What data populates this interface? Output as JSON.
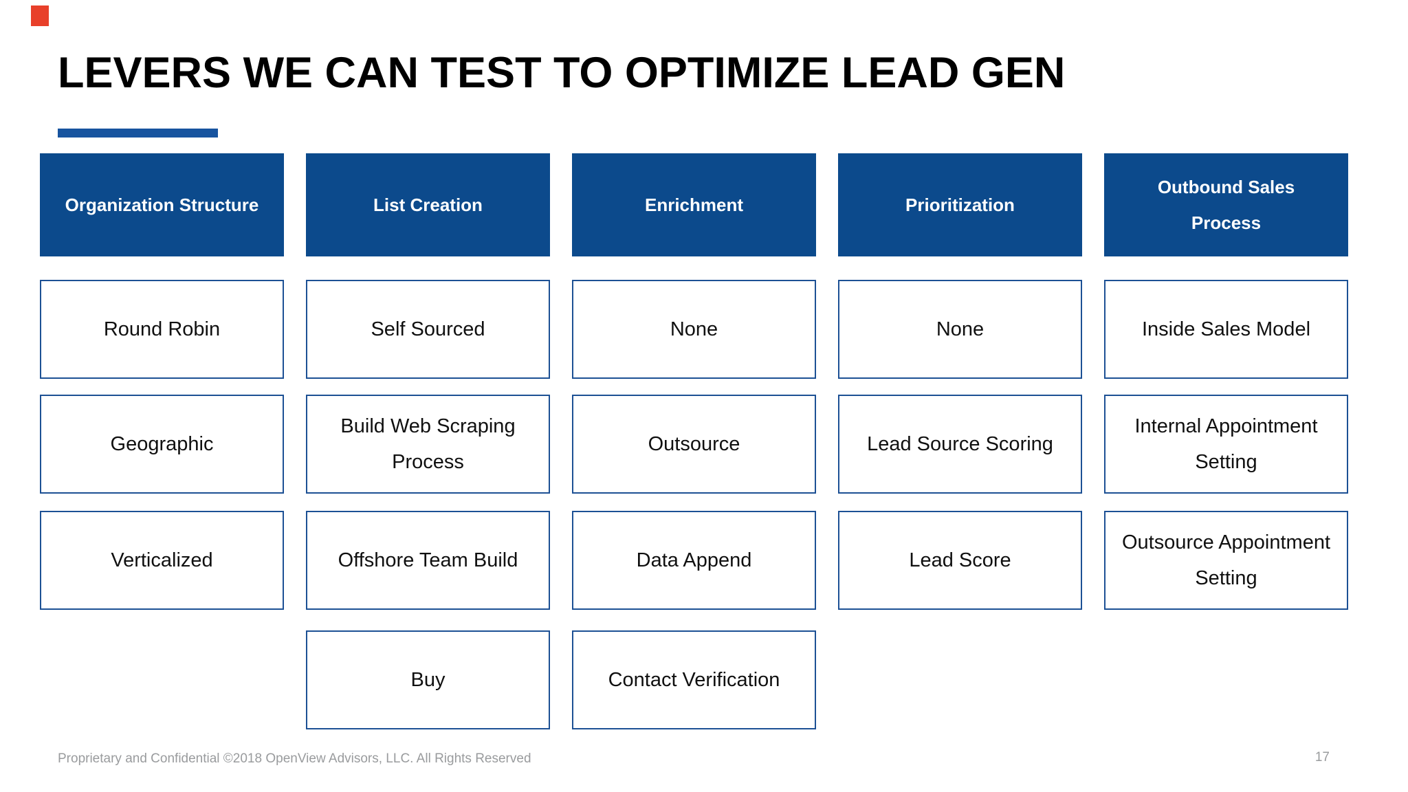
{
  "slide": {
    "title": "LEVERS WE CAN TEST TO OPTIMIZE LEAD GEN",
    "footer": "Proprietary and Confidential ©2018 OpenView Advisors, LLC. All Rights Reserved",
    "page_number": "17",
    "colors": {
      "header_bg": "#0C4A8C",
      "accent_bar": "#17549F",
      "cell_border": "#1C5094",
      "cell_text": "#101010",
      "footer_text": "#999B9D",
      "red_mark": "#E8402A"
    }
  },
  "columns": [
    {
      "header": "Organization Structure",
      "items": [
        "Round Robin",
        "Geographic",
        "Verticalized"
      ]
    },
    {
      "header": "List Creation",
      "items": [
        "Self Sourced",
        "Build Web Scraping Process",
        "Offshore Team Build",
        "Buy"
      ]
    },
    {
      "header": "Enrichment",
      "items": [
        "None",
        "Outsource",
        "Data Append",
        "Contact Verification"
      ]
    },
    {
      "header": "Prioritization",
      "items": [
        "None",
        "Lead Source Scoring",
        "Lead Score"
      ]
    },
    {
      "header": "Outbound Sales\nProcess",
      "items": [
        "Inside Sales Model",
        "Internal Appointment Setting",
        "Outsource Appointment Setting"
      ]
    }
  ]
}
